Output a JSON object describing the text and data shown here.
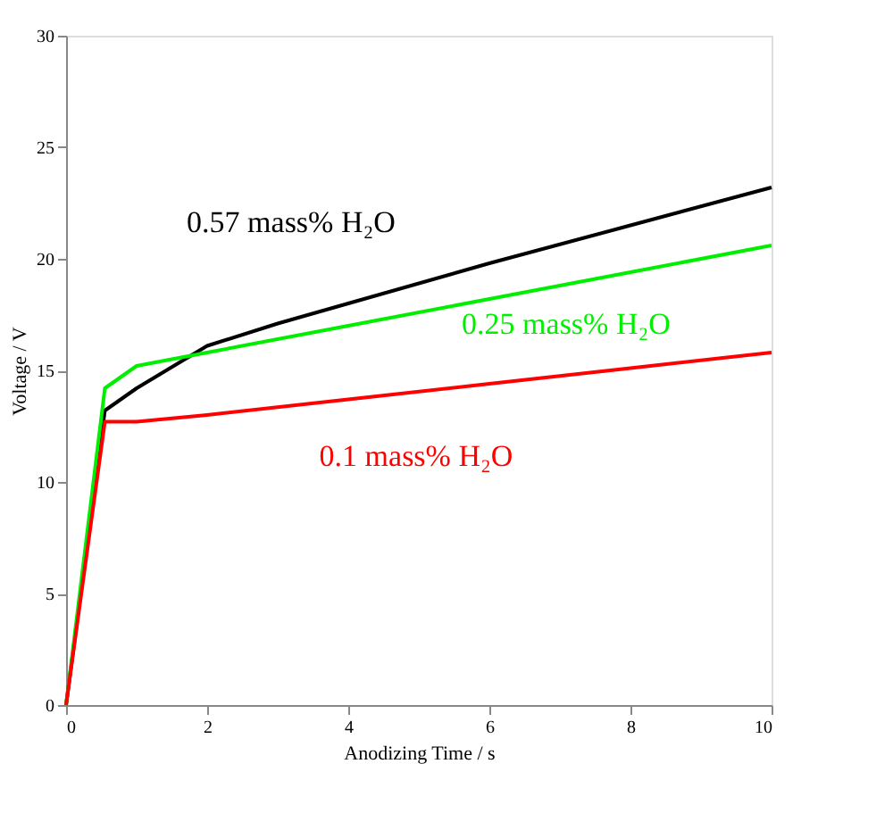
{
  "chart_data": {
    "type": "line",
    "xlabel": "Anodizing Time / s",
    "ylabel": "Voltage / V",
    "xlim": [
      0,
      10
    ],
    "ylim": [
      0,
      30
    ],
    "xticks": [
      0,
      2,
      4,
      6,
      8,
      10
    ],
    "yticks": [
      0,
      5,
      10,
      15,
      20,
      25,
      30
    ],
    "grid": false,
    "legend": false,
    "line_style": "solid",
    "marker": "none",
    "series": [
      {
        "name": "0.57 mass% H₂O",
        "color": "#000000",
        "x": [
          0,
          0.55,
          1,
          2,
          3,
          4,
          6,
          8,
          10
        ],
        "values": [
          0,
          13.2,
          14.2,
          16.1,
          17.1,
          18.0,
          19.8,
          21.5,
          23.2
        ]
      },
      {
        "name": "0.25 mass% H₂O",
        "color": "#00ee00",
        "x": [
          0,
          0.55,
          1,
          1.5,
          2,
          4,
          6,
          8,
          10
        ],
        "values": [
          0,
          14.2,
          15.2,
          15.5,
          15.8,
          17.0,
          18.2,
          19.4,
          20.6
        ]
      },
      {
        "name": "0.1 mass% H₂O",
        "color": "#ff0000",
        "x": [
          0,
          0.55,
          1,
          2,
          4,
          6,
          8,
          10
        ],
        "values": [
          0,
          12.7,
          12.7,
          13.0,
          13.7,
          14.4,
          15.1,
          15.8
        ]
      }
    ]
  }
}
